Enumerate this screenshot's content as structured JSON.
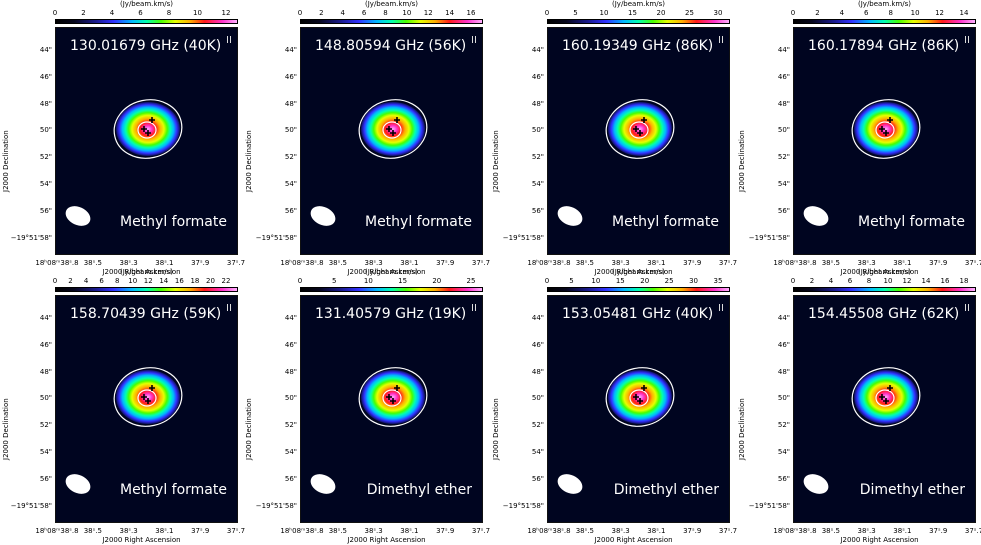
{
  "colorbar_unit": "(Jy/beam.km/s)",
  "y_axis": {
    "title": "J2000 Declination",
    "ticks": [
      "44\"",
      "46\"",
      "48\"",
      "50\"",
      "52\"",
      "54\"",
      "56\"",
      "−19°51'58\""
    ]
  },
  "x_axis": {
    "title": "J2000 Right Ascension",
    "ticks": [
      "18h08m38s.8",
      "38s.5",
      "38s.3",
      "38s.1",
      "37s.9",
      "37s.7"
    ]
  },
  "panels": [
    {
      "freq": "130.01679 GHz (40K)",
      "molecule": "Methyl formate",
      "colorbar_ticks": [
        "0",
        "2",
        "4",
        "6",
        "8",
        "10",
        "12"
      ]
    },
    {
      "freq": "148.80594 GHz (56K)",
      "molecule": "Methyl formate",
      "colorbar_ticks": [
        "0",
        "2",
        "4",
        "6",
        "8",
        "10",
        "12",
        "14",
        "16"
      ]
    },
    {
      "freq": "160.19349 GHz (86K)",
      "molecule": "Methyl formate",
      "colorbar_ticks": [
        "0",
        "5",
        "10",
        "15",
        "20",
        "25",
        "30"
      ]
    },
    {
      "freq": "160.17894 GHz (86K)",
      "molecule": "Methyl formate",
      "colorbar_ticks": [
        "0",
        "2",
        "4",
        "6",
        "8",
        "10",
        "12",
        "14"
      ]
    },
    {
      "freq": "158.70439 GHz (59K)",
      "molecule": "Methyl formate",
      "colorbar_ticks": [
        "0",
        "2",
        "4",
        "6",
        "8",
        "10",
        "12",
        "14",
        "16",
        "18",
        "20",
        "22"
      ]
    },
    {
      "freq": "131.40579 GHz (19K)",
      "molecule": "Dimethyl ether",
      "colorbar_ticks": [
        "0",
        "5",
        "10",
        "15",
        "20",
        "25"
      ]
    },
    {
      "freq": "153.05481 GHz (40K)",
      "molecule": "Dimethyl ether",
      "colorbar_ticks": [
        "0",
        "5",
        "10",
        "15",
        "20",
        "25",
        "30",
        "35"
      ]
    },
    {
      "freq": "154.45508 GHz (62K)",
      "molecule": "Dimethyl ether",
      "colorbar_ticks": [
        "0",
        "2",
        "4",
        "6",
        "8",
        "10",
        "12",
        "14",
        "16",
        "18"
      ]
    }
  ],
  "colors": {
    "map_background": "#000520",
    "contour": "#ffffff",
    "marker": "#000000"
  }
}
